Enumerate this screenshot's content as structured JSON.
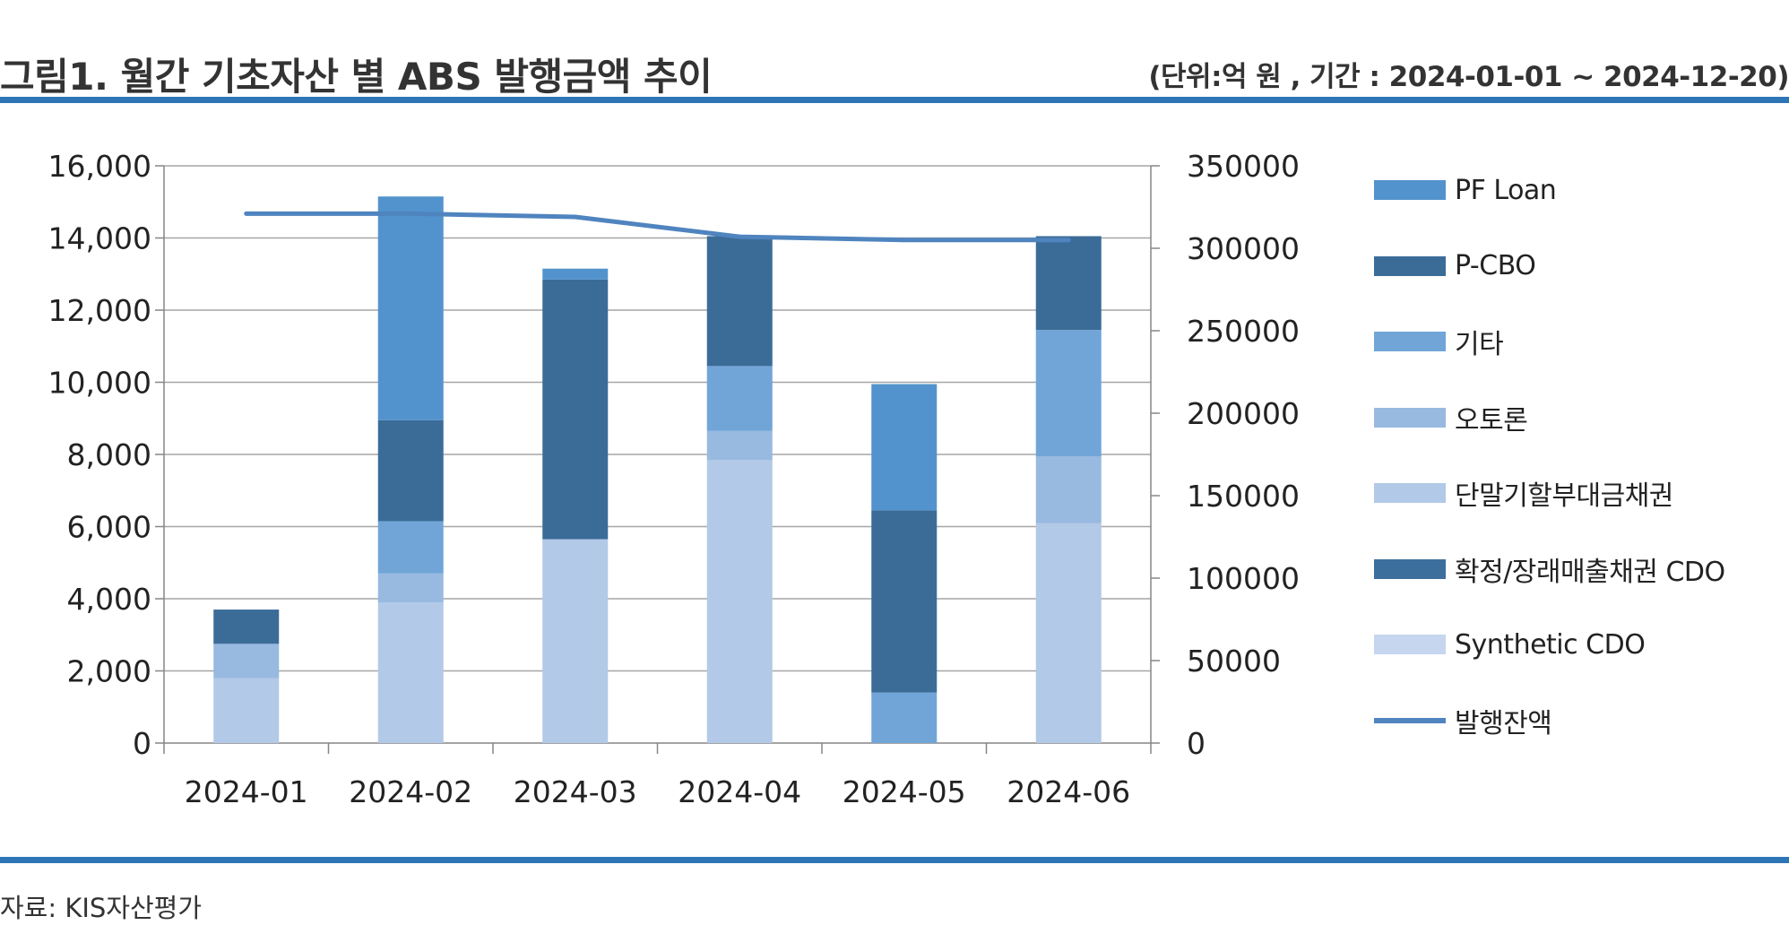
{
  "header": {
    "title": "그림1. 월간 기초자산 별 ABS 발행금액 추이",
    "unit_note": "(단위:억 원 , 기간 : 2024-01-01 ~ 2024-12-20)"
  },
  "footer": {
    "source": "자료: KIS자산평가"
  },
  "colors": {
    "rule": "#2e75b6",
    "axis": "#868686",
    "grid": "#a6a6a6",
    "pf_loan": "#5393cd",
    "p_cbo": "#3b6c98",
    "etc": "#71a5d8",
    "auto_loan": "#98b9e0",
    "short_term_receivables": "#b2c9e7",
    "fixed_future_receivables_cdo": "#3d6f9d",
    "synthetic_cdo": "#c5d6ee",
    "outstanding": "#4f84bf"
  },
  "chart_data": {
    "type": "bar",
    "stacked": true,
    "categories": [
      "2024-01",
      "2024-02",
      "2024-03",
      "2024-04",
      "2024-05",
      "2024-06"
    ],
    "y_left": {
      "min": 0,
      "max": 16000,
      "step": 2000,
      "tick_labels": [
        "0",
        "2,000",
        "4,000",
        "6,000",
        "8,000",
        "10,000",
        "12,000",
        "14,000",
        "16,000"
      ]
    },
    "y_right": {
      "min": 0,
      "max": 350000,
      "step": 50000,
      "tick_labels": [
        "0",
        "50000",
        "100000",
        "150000",
        "200000",
        "250000",
        "300000",
        "350000"
      ]
    },
    "grid": true,
    "legend_position": "right",
    "series": [
      {
        "name": "Synthetic CDO",
        "key": "synthetic_cdo",
        "values": [
          0,
          0,
          0,
          0,
          0,
          0
        ]
      },
      {
        "name": "확정/장래매출채권 CDO",
        "key": "fixed_future_receivables_cdo",
        "values": [
          0,
          0,
          0,
          0,
          0,
          0
        ]
      },
      {
        "name": "단말기할부대금채권",
        "key": "short_term_receivables",
        "values": [
          1800,
          3900,
          5650,
          7850,
          0,
          6100
        ]
      },
      {
        "name": "오토론",
        "key": "auto_loan",
        "values": [
          950,
          800,
          0,
          800,
          0,
          1850
        ]
      },
      {
        "name": "기타",
        "key": "etc",
        "values": [
          0,
          1450,
          0,
          1800,
          1400,
          3500
        ]
      },
      {
        "name": "P-CBO",
        "key": "p_cbo",
        "values": [
          950,
          2800,
          7200,
          3600,
          5050,
          2600
        ]
      },
      {
        "name": "PF Loan",
        "key": "pf_loan",
        "values": [
          0,
          6200,
          300,
          0,
          3500,
          0
        ]
      }
    ],
    "line_series": {
      "name": "발행잔액",
      "key": "outstanding",
      "axis": "right",
      "values": [
        321000,
        321000,
        319000,
        307000,
        305000,
        305000
      ]
    }
  },
  "legend_order": [
    "pf_loan",
    "p_cbo",
    "etc",
    "auto_loan",
    "short_term_receivables",
    "fixed_future_receivables_cdo",
    "synthetic_cdo",
    "outstanding"
  ]
}
